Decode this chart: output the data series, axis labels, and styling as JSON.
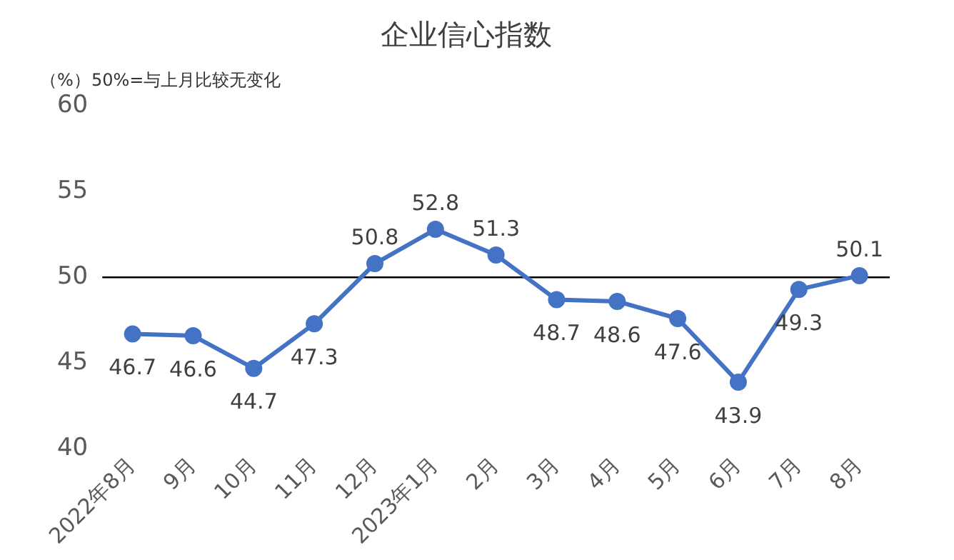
{
  "chart_data": {
    "type": "line",
    "title": "企业信心指数",
    "ylabel": "（%）",
    "annotations": [
      "50%=与上月比较无变化"
    ],
    "categories": [
      "2022年8月",
      "9月",
      "10月",
      "11月",
      "12月",
      "2023年1月",
      "2月",
      "3月",
      "4月",
      "5月",
      "6月",
      "7月",
      "8月"
    ],
    "series": [
      {
        "color": "#4472c4",
        "values": [
          46.7,
          46.6,
          44.7,
          47.3,
          50.8,
          52.8,
          51.3,
          48.7,
          48.6,
          47.6,
          43.9,
          49.3,
          50.1
        ]
      }
    ],
    "ylim": [
      40,
      60
    ],
    "yticks": [
      40,
      45,
      50,
      55,
      60
    ],
    "grid": false,
    "legend": false,
    "marker": "circle",
    "line_style": "solid",
    "data_labels": true,
    "ref_lines": [
      {
        "axis": "y",
        "value": 50,
        "color": "#000000"
      }
    ]
  }
}
